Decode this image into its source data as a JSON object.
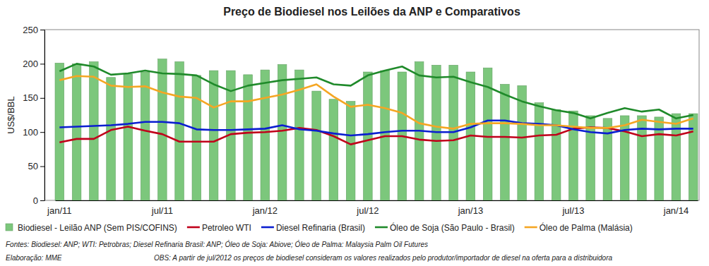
{
  "chart_data": {
    "type": "bar",
    "title": "Preço de Biodiesel nos Leilões da ANP e Comparativos",
    "y_label": "US$/BBL",
    "categories": [
      "jan/11",
      null,
      null,
      null,
      null,
      null,
      "jul/11",
      null,
      null,
      null,
      null,
      null,
      "jan/12",
      null,
      null,
      null,
      null,
      null,
      "jul/12",
      null,
      null,
      null,
      null,
      null,
      "jan/13",
      null,
      null,
      null,
      null,
      null,
      "jul/13",
      null,
      null,
      null,
      null,
      null,
      "jan/14",
      null
    ],
    "series": [
      {
        "name": "Biodiesel - Leilão ANP (Sem PIS/COFINS)",
        "type": "bar",
        "color": "#7cc77c",
        "values": [
          201,
          200,
          203,
          180,
          185,
          188,
          207,
          203,
          183,
          190,
          190,
          184,
          191,
          199,
          191,
          160,
          148,
          145,
          188,
          190,
          188,
          203,
          198,
          198,
          188,
          194,
          170,
          168,
          143,
          133,
          131,
          124,
          120,
          124,
          124,
          122,
          127,
          127
        ]
      },
      {
        "name": "Petroleo WTI",
        "type": "line",
        "color": "#c0001a",
        "values": [
          85,
          90,
          90,
          103,
          108,
          102,
          97,
          86,
          86,
          86,
          97,
          99,
          100,
          102,
          106,
          103,
          94,
          82,
          88,
          94,
          94,
          89,
          87,
          88,
          95,
          93,
          93,
          92,
          95,
          96,
          105,
          107,
          106,
          101,
          94,
          97,
          95,
          101
        ]
      },
      {
        "name": "Diesel Refinaria (Brasil)",
        "type": "line",
        "color": "#0a1ed0",
        "values": [
          107,
          108,
          109,
          110,
          112,
          115,
          115,
          113,
          104,
          103,
          103,
          104,
          105,
          110,
          104,
          102,
          98,
          95,
          97,
          100,
          102,
          102,
          100,
          100,
          107,
          117,
          117,
          113,
          112,
          110,
          104,
          100,
          98,
          103,
          105,
          104,
          105,
          105
        ]
      },
      {
        "name": "Óleo de Soja (São Paulo - Brasil)",
        "type": "line",
        "color": "#1f8a2a",
        "values": [
          189,
          200,
          196,
          184,
          186,
          190,
          186,
          185,
          183,
          170,
          160,
          168,
          172,
          176,
          178,
          180,
          170,
          168,
          183,
          190,
          196,
          183,
          180,
          181,
          173,
          166,
          155,
          145,
          138,
          132,
          128,
          120,
          128,
          135,
          130,
          133,
          120,
          125
        ]
      },
      {
        "name": "Óleo de Palma (Malásia)",
        "type": "line",
        "color": "#f5a623",
        "values": [
          176,
          182,
          181,
          168,
          166,
          167,
          158,
          152,
          150,
          136,
          145,
          145,
          150,
          155,
          162,
          170,
          152,
          137,
          140,
          135,
          128,
          113,
          108,
          105,
          112,
          113,
          113,
          112,
          110,
          110,
          108,
          106,
          106,
          110,
          118,
          115,
          112,
          120
        ]
      }
    ],
    "ylim": [
      0,
      250
    ],
    "yticks": [
      0,
      50,
      100,
      150,
      200,
      250
    ],
    "grid": false,
    "legend": "bottom",
    "annotations": [
      "Fontes:  Biodiesel: ANP; WTI: Petrobras; Diesel Refinaria Brasil: ANP; Óleo de Soja: Abiove; Óleo de Palma: Malaysia Palm Oil Futures",
      "Elaboração:  MME",
      "OBS: A partir de jul/2012 os preços de biodiesel consideram os valores realizados pelo produtor/importador de diesel na oferta para a distribuidora"
    ]
  }
}
